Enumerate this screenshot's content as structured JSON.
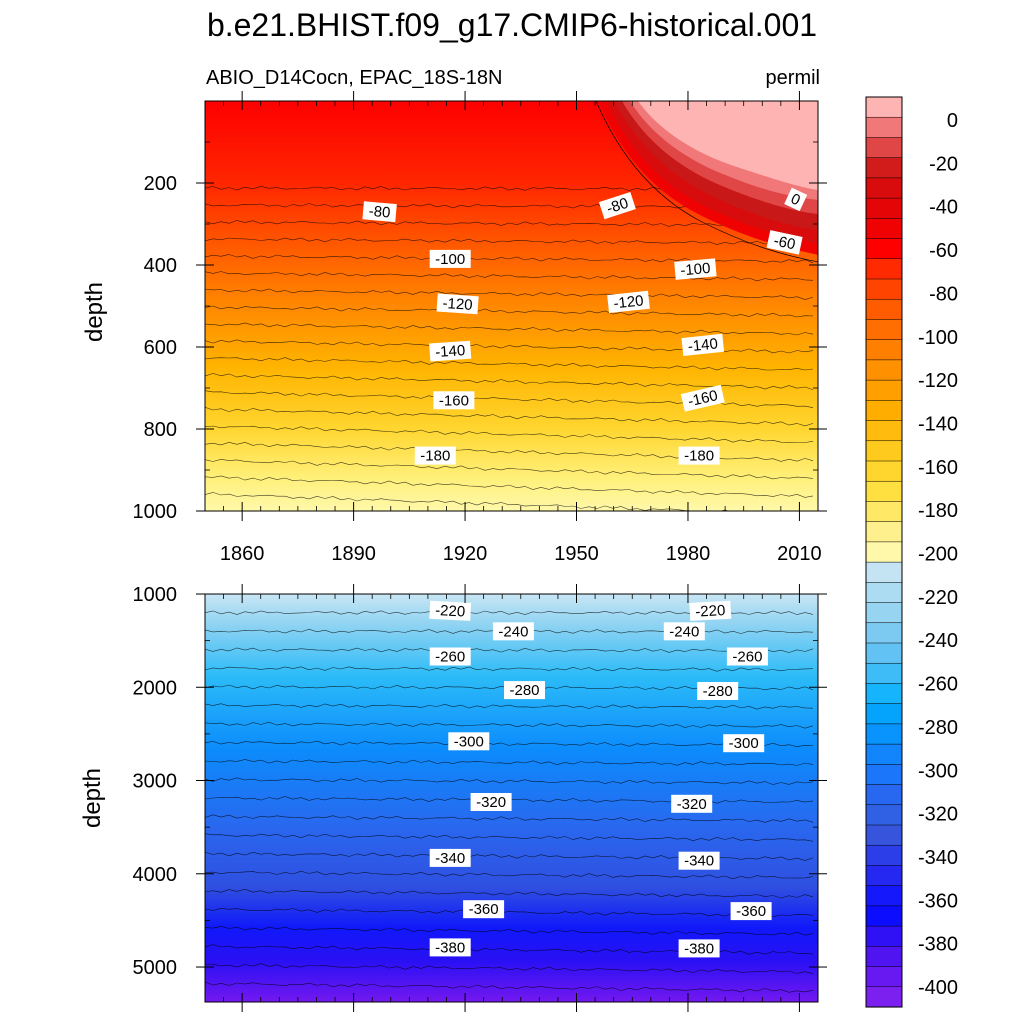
{
  "figure": {
    "title": "b.e21.BHIST.f09_g17.CMIP6-historical.001",
    "subtitle_left": "ABIO_D14Cocn, EPAC_18S-18N",
    "subtitle_right": "permil"
  },
  "chart_data": [
    {
      "type": "heatmap",
      "panel": "upper",
      "x_range": [
        1850,
        2015
      ],
      "ylim": [
        0,
        1000
      ],
      "y_reversed": true,
      "ylabel": "depth",
      "xticks": [
        1860,
        1890,
        1920,
        1950,
        1980,
        2010
      ],
      "yticks": [
        200,
        400,
        600,
        800,
        1000
      ],
      "contour_interval": 10,
      "contour_labels": [
        {
          "text": "-80",
          "year": 1897,
          "depth": 270,
          "angle": 5
        },
        {
          "text": "-80",
          "year": 1961,
          "depth": 255,
          "angle": -18
        },
        {
          "text": "-100",
          "year": 1916,
          "depth": 385,
          "angle": 0
        },
        {
          "text": "-100",
          "year": 1982,
          "depth": 410,
          "angle": -5
        },
        {
          "text": "-120",
          "year": 1918,
          "depth": 495,
          "angle": 4
        },
        {
          "text": "-120",
          "year": 1964,
          "depth": 490,
          "angle": -6
        },
        {
          "text": "-140",
          "year": 1916,
          "depth": 610,
          "angle": -4
        },
        {
          "text": "-140",
          "year": 1984,
          "depth": 595,
          "angle": -6
        },
        {
          "text": "-160",
          "year": 1917,
          "depth": 730,
          "angle": 0
        },
        {
          "text": "-160",
          "year": 1984,
          "depth": 725,
          "angle": -13
        },
        {
          "text": "-180",
          "year": 1912,
          "depth": 865,
          "angle": 0
        },
        {
          "text": "-180",
          "year": 1983,
          "depth": 865,
          "angle": 0
        },
        {
          "text": "-60",
          "year": 2006,
          "depth": 345,
          "angle": 12
        },
        {
          "text": "0",
          "year": 2009,
          "depth": 240,
          "angle": 25
        }
      ]
    },
    {
      "type": "heatmap",
      "panel": "lower",
      "x_range": [
        1850,
        2015
      ],
      "ylim": [
        1000,
        5375
      ],
      "y_reversed": true,
      "ylabel": "depth",
      "yticks": [
        1000,
        2000,
        3000,
        4000,
        5000
      ],
      "contour_interval": 10,
      "contour_labels": [
        {
          "text": "-220",
          "year": 1916,
          "depth": 1180,
          "angle": 3
        },
        {
          "text": "-220",
          "year": 1986,
          "depth": 1180,
          "angle": -3
        },
        {
          "text": "-240",
          "year": 1933,
          "depth": 1400,
          "angle": 0
        },
        {
          "text": "-240",
          "year": 1979,
          "depth": 1400,
          "angle": 0
        },
        {
          "text": "-260",
          "year": 1916,
          "depth": 1670,
          "angle": 0
        },
        {
          "text": "-260",
          "year": 1996,
          "depth": 1670,
          "angle": 0
        },
        {
          "text": "-280",
          "year": 1936,
          "depth": 2030,
          "angle": 0
        },
        {
          "text": "-280",
          "year": 1988,
          "depth": 2040,
          "angle": 0
        },
        {
          "text": "-300",
          "year": 1921,
          "depth": 2580,
          "angle": 0
        },
        {
          "text": "-300",
          "year": 1995,
          "depth": 2600,
          "angle": 0
        },
        {
          "text": "-320",
          "year": 1927,
          "depth": 3230,
          "angle": 0
        },
        {
          "text": "-320",
          "year": 1981,
          "depth": 3250,
          "angle": 0
        },
        {
          "text": "-340",
          "year": 1916,
          "depth": 3830,
          "angle": 0
        },
        {
          "text": "-340",
          "year": 1983,
          "depth": 3860,
          "angle": 0
        },
        {
          "text": "-360",
          "year": 1925,
          "depth": 4380,
          "angle": 0
        },
        {
          "text": "-360",
          "year": 1997,
          "depth": 4400,
          "angle": 0
        },
        {
          "text": "-380",
          "year": 1916,
          "depth": 4790,
          "angle": 0
        },
        {
          "text": "-380",
          "year": 1983,
          "depth": 4800,
          "angle": 0
        }
      ]
    }
  ],
  "colorbar": {
    "orientation": "vertical",
    "labels": [
      "0",
      "-20",
      "-40",
      "-60",
      "-80",
      "-100",
      "-120",
      "-140",
      "-160",
      "-180",
      "-200",
      "-220",
      "-240",
      "-260",
      "-280",
      "-300",
      "-320",
      "-340",
      "-360",
      "-380",
      "-400"
    ],
    "colors": [
      "#ffb4b4",
      "#f07878",
      "#e04646",
      "#d21c1c",
      "#d80c0c",
      "#e40606",
      "#f00202",
      "#fe0000",
      "#ff2a00",
      "#ff4400",
      "#ff5c00",
      "#ff6e00",
      "#ff8000",
      "#ff9000",
      "#ffa000",
      "#ffae00",
      "#ffbc0e",
      "#ffca1e",
      "#ffd62e",
      "#ffe040",
      "#ffe866",
      "#fff08e",
      "#fff8aa",
      "#c4e4f4",
      "#acdcf2",
      "#96d4f2",
      "#7ccaf2",
      "#62c2f4",
      "#3ebcf8",
      "#16b4fc",
      "#04a4fc",
      "#0894fc",
      "#1284fc",
      "#1c76fa",
      "#2868f0",
      "#3060e4",
      "#3654dc",
      "#2c3ee8",
      "#2428f0",
      "#1418fa",
      "#0c0cff",
      "#3010f4",
      "#5014f0",
      "#6818f0",
      "#7c20f0"
    ]
  },
  "colors": {
    "upper_surface_peak": "#ffb4b4",
    "upper_deep": "#fff6a8",
    "lower_top": "#c8e6f4",
    "lower_bottom": "#7418f0",
    "label_box": "#ffffff"
  }
}
